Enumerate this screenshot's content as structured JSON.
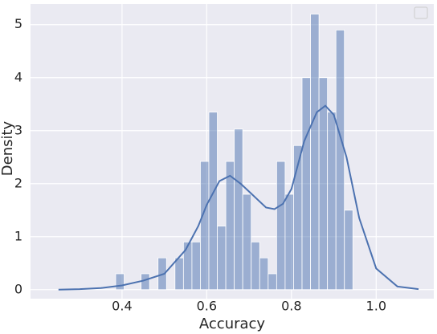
{
  "chart_data": {
    "type": "histogram",
    "x_label": "Accuracy",
    "y_label": "Density",
    "bins": [
      0.385,
      0.405,
      0.425,
      0.445,
      0.465,
      0.485,
      0.505,
      0.525,
      0.545,
      0.565,
      0.585,
      0.605,
      0.625,
      0.645,
      0.665,
      0.685,
      0.705,
      0.725,
      0.745,
      0.765,
      0.785,
      0.805,
      0.825,
      0.845,
      0.865,
      0.885,
      0.905,
      0.925,
      0.945
    ],
    "values": [
      0.3,
      0,
      0,
      0.3,
      0,
      0.6,
      0,
      0.6,
      0.9,
      0.9,
      2.42,
      3.35,
      1.2,
      2.42,
      3.03,
      1.8,
      0.9,
      0.6,
      0.3,
      2.42,
      1.8,
      2.72,
      4.0,
      5.2,
      4.0,
      3.35,
      4.9,
      1.5
    ],
    "color": "#4c72b0",
    "kde": {
      "color": "#4c72b0",
      "x": [
        0.25,
        0.3,
        0.35,
        0.4,
        0.45,
        0.5,
        0.55,
        0.58,
        0.6,
        0.63,
        0.655,
        0.68,
        0.7,
        0.72,
        0.74,
        0.76,
        0.78,
        0.8,
        0.83,
        0.86,
        0.88,
        0.9,
        0.93,
        0.96,
        1.0,
        1.05,
        1.1
      ],
      "y": [
        0.0,
        0.01,
        0.03,
        0.08,
        0.17,
        0.3,
        0.75,
        1.2,
        1.6,
        2.05,
        2.15,
        2.0,
        1.85,
        1.7,
        1.55,
        1.52,
        1.62,
        1.9,
        2.8,
        3.35,
        3.47,
        3.3,
        2.5,
        1.35,
        0.4,
        0.06,
        0.01
      ]
    },
    "xlim": [
      0.184,
      1.136
    ],
    "ylim": [
      -0.17,
      5.39
    ],
    "xticks": [
      0.4,
      0.6,
      0.8,
      {
        "value": 1,
        "label": "1.0"
      }
    ],
    "yticks": [
      0,
      1,
      2,
      3,
      4,
      5
    ],
    "grid": true
  }
}
